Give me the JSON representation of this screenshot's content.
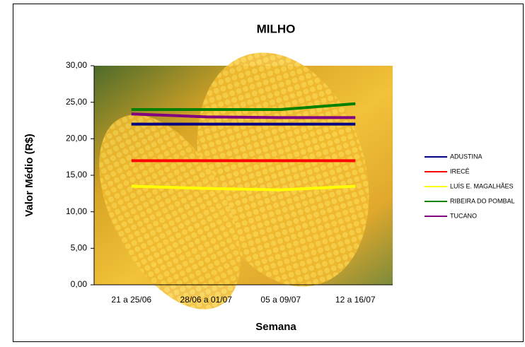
{
  "chart_data": {
    "type": "line",
    "title": "MILHO",
    "x_label": "Semana",
    "y_label": "Valor Médio (R$)",
    "categories": [
      "21 a 25/06",
      "28/06 a 01/07",
      "05 a 09/07",
      "12 a 16/07"
    ],
    "ylim": [
      0,
      30
    ],
    "yticks": [
      {
        "value": 0,
        "label": "0,00"
      },
      {
        "value": 5,
        "label": "5,00"
      },
      {
        "value": 10,
        "label": "10,00"
      },
      {
        "value": 15,
        "label": "15,00"
      },
      {
        "value": 20,
        "label": "20,00"
      },
      {
        "value": 25,
        "label": "25,00"
      },
      {
        "value": 30,
        "label": "30,00"
      }
    ],
    "legend": "right",
    "series": [
      {
        "name": "ADUSTINA",
        "color": "#000080",
        "values": [
          22,
          22,
          22,
          22
        ]
      },
      {
        "name": "IRECÊ",
        "color": "#ff0000",
        "values": [
          17,
          17,
          17,
          17
        ]
      },
      {
        "name": "LUÍS E. MAGALHÃES",
        "color": "#ffff00",
        "values": [
          13.5,
          13.2,
          13,
          13.5
        ]
      },
      {
        "name": "RIBEIRA DO POMBAL",
        "color": "#008000",
        "values": [
          24,
          24,
          24,
          24.8
        ]
      },
      {
        "name": "TUCANO",
        "color": "#800080",
        "values": [
          23.4,
          23,
          22.9,
          22.9
        ]
      }
    ]
  }
}
